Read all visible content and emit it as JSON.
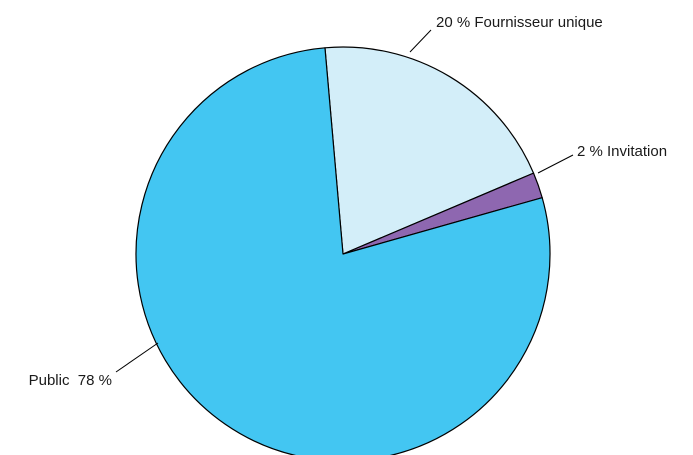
{
  "chart_data": {
    "type": "pie",
    "title": "",
    "slices": [
      {
        "category": "Fournisseur unique",
        "value": 20,
        "label": "20 % Fournisseur unique",
        "color": "#d3eef9"
      },
      {
        "category": "Invitation",
        "value": 2,
        "label": "2 % Invitation",
        "color": "#8e67b0"
      },
      {
        "category": "Public",
        "value": 78,
        "label": "Public  78 %",
        "color": "#43c6f2"
      }
    ],
    "legend": "none",
    "label_style": "external labels with leader lines"
  }
}
